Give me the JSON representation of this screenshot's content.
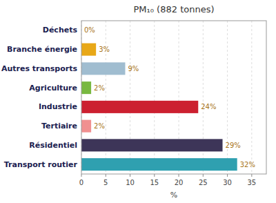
{
  "chart_data": {
    "type": "bar",
    "orientation": "horizontal",
    "title": "PM₁₀ (882 tonnes)",
    "categories": [
      "Transport routier",
      "Résidentiel",
      "Tertiaire",
      "Industrie",
      "Agriculture",
      "Autres transports",
      "Branche énergie",
      "Déchets"
    ],
    "values": [
      32,
      29,
      2,
      24,
      2,
      9,
      3,
      0
    ],
    "value_labels": [
      "32%",
      "29%",
      "2%",
      "24%",
      "2%",
      "9%",
      "3%",
      "0%"
    ],
    "data_labels": true,
    "colors": [
      "#2fa0b0",
      "#3d3558",
      "#f09090",
      "#cc2030",
      "#78b840",
      "#a0bdd0",
      "#e8a818",
      "#cccccc"
    ],
    "xlabel": "%",
    "xlim": [
      0,
      38
    ],
    "xticks": [
      0,
      5,
      10,
      15,
      20,
      25,
      30,
      35
    ],
    "grid": true
  }
}
